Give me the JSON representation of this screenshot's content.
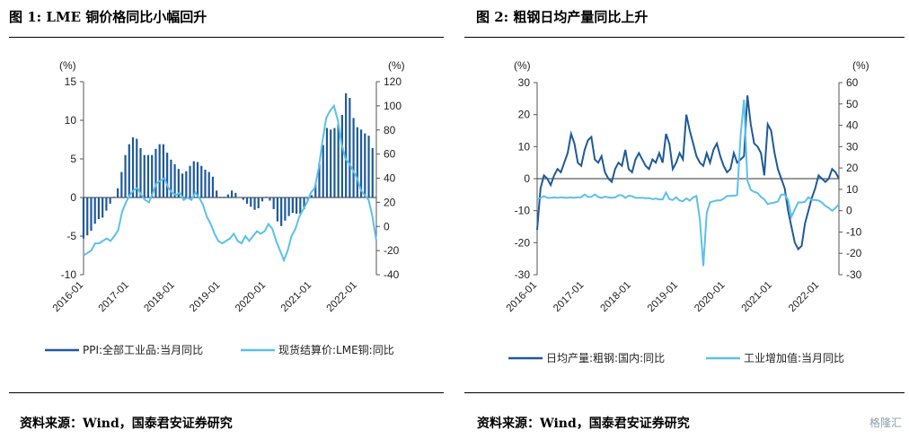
{
  "left": {
    "title": "图 1: LME 铜价格同比小幅回升",
    "source": "资料来源：Wind，国泰君安证券研究",
    "legend": [
      "PPI:全部工业品:当月同比",
      "现货结算价:LME铜:同比"
    ]
  },
  "right": {
    "title": "图 2: 粗钢日均产量同比上升",
    "source": "资料来源：Wind，国泰君安证券研究",
    "legend": [
      "日均产量:粗钢:国内:同比",
      "工业增加值:当月同比"
    ]
  },
  "watermark": "格隆汇",
  "colors": {
    "dark": "#1f5a99",
    "light": "#5bc0eb"
  },
  "chart_data": [
    {
      "type": "bar",
      "title": "图 1: LME 铜价格同比小幅回升",
      "left_unit": "(%)",
      "right_unit": "(%)",
      "ylim": [
        -10,
        15
      ],
      "y2lim": [
        -40,
        120
      ],
      "yticks": [
        -10,
        -5,
        0,
        5,
        10,
        15
      ],
      "y2ticks": [
        -40,
        -20,
        0,
        20,
        40,
        60,
        80,
        100,
        120
      ],
      "x_start": "2016-01",
      "x_end": "2022-06",
      "x_ticks": [
        "2016-01",
        "2017-01",
        "2018-01",
        "2019-01",
        "2020-01",
        "2021-01",
        "2022-01"
      ],
      "series": [
        {
          "name": "PPI:全部工业品:当月同比",
          "axis": "left",
          "kind": "bar",
          "values": [
            -5.3,
            -4.9,
            -4.3,
            -3.4,
            -2.8,
            -2.6,
            -1.7,
            -0.8,
            0.1,
            1.2,
            3.3,
            5.5,
            6.9,
            7.8,
            7.6,
            6.4,
            5.5,
            5.5,
            5.5,
            6.3,
            6.9,
            6.9,
            5.8,
            4.9,
            4.3,
            3.7,
            3.1,
            3.4,
            4.1,
            4.7,
            4.6,
            4.1,
            3.6,
            3.3,
            2.7,
            0.9,
            0.1,
            0.1,
            0.4,
            0.9,
            0.6,
            0.0,
            -0.3,
            -0.8,
            -1.2,
            -1.6,
            -1.4,
            -0.5,
            0.1,
            -0.4,
            -1.5,
            -3.1,
            -3.7,
            -3.0,
            -2.4,
            -2.0,
            -2.1,
            -2.1,
            -1.5,
            -0.4,
            0.3,
            1.7,
            4.4,
            6.8,
            9.0,
            8.8,
            9.0,
            9.5,
            10.7,
            13.5,
            12.9,
            10.3,
            9.1,
            8.8,
            8.3,
            8.0,
            6.4
          ]
        },
        {
          "name": "现货结算价:LME铜:同比",
          "axis": "right",
          "kind": "line",
          "values": [
            -24,
            -22,
            -20,
            -14,
            -14,
            -12,
            -10,
            -12,
            -8,
            -3,
            12,
            20,
            26,
            30,
            32,
            26,
            22,
            20,
            28,
            36,
            38,
            40,
            32,
            28,
            26,
            28,
            22,
            24,
            22,
            28,
            24,
            18,
            8,
            2,
            -6,
            -12,
            -14,
            -12,
            -10,
            -6,
            -12,
            -14,
            -8,
            -12,
            -8,
            -4,
            -6,
            -4,
            2,
            -2,
            -12,
            -20,
            -28,
            -20,
            -8,
            -2,
            8,
            14,
            20,
            28,
            32,
            48,
            70,
            90,
            96,
            100,
            88,
            68,
            56,
            52,
            46,
            40,
            30,
            26,
            22,
            8,
            -12
          ]
        }
      ]
    },
    {
      "type": "line",
      "title": "图 2: 粗钢日均产量同比上升",
      "left_unit": "(%)",
      "right_unit": "(%)",
      "ylim": [
        -30,
        30
      ],
      "y2lim": [
        -30,
        60
      ],
      "yticks": [
        -30,
        -20,
        -10,
        0,
        10,
        20,
        30
      ],
      "y2ticks": [
        -30,
        -20,
        -10,
        0,
        10,
        20,
        30,
        40,
        50,
        60
      ],
      "x_start": "2016-01",
      "x_end": "2022-06",
      "x_ticks": [
        "2016-01",
        "2017-01",
        "2018-01",
        "2019-01",
        "2020-01",
        "2021-01",
        "2022-01"
      ],
      "series": [
        {
          "name": "日均产量:粗钢:国内:同比",
          "axis": "left",
          "kind": "line",
          "values": [
            -16,
            -3,
            1,
            0,
            -2,
            1,
            3,
            2,
            5,
            8,
            14,
            11,
            5,
            4,
            9,
            12,
            13,
            6,
            5,
            7,
            2,
            0,
            -1,
            3,
            5,
            4,
            9,
            3,
            2,
            6,
            8,
            6,
            4,
            3,
            6,
            5,
            8,
            5,
            14,
            11,
            3,
            5,
            8,
            6,
            20,
            15,
            11,
            7,
            5,
            4,
            8,
            5,
            9,
            11,
            7,
            4,
            2,
            3,
            8,
            5,
            6,
            7,
            26,
            17,
            11,
            10,
            8,
            1,
            17,
            15,
            8,
            3,
            0,
            -3,
            -10,
            -15,
            -20,
            -22,
            -21,
            -14,
            -10,
            -6,
            -3,
            1,
            0,
            -1,
            0,
            3,
            2,
            0
          ]
        },
        {
          "name": "工业增加值:当月同比",
          "axis": "right",
          "kind": "line",
          "values": [
            5.5,
            6.0,
            6.8,
            6.0,
            6.0,
            6.2,
            6.0,
            6.3,
            6.1,
            6.1,
            6.2,
            6.0,
            6.3,
            6.3,
            7.6,
            6.5,
            6.5,
            7.6,
            6.4,
            6.0,
            6.6,
            6.2,
            6.1,
            6.2,
            7.2,
            7.2,
            6.0,
            7.0,
            6.8,
            6.0,
            6.0,
            6.1,
            5.8,
            5.9,
            5.4,
            5.7,
            5.3,
            5.3,
            8.5,
            5.4,
            5.0,
            6.3,
            4.8,
            4.4,
            5.8,
            4.7,
            6.2,
            6.9,
            -4.3,
            -25.9,
            -1.1,
            3.9,
            4.4,
            4.8,
            4.8,
            5.6,
            6.9,
            6.9,
            7.0,
            7.3,
            35.1,
            52.0,
            14.1,
            9.8,
            8.8,
            8.3,
            6.4,
            5.3,
            3.1,
            3.5,
            3.8,
            4.3,
            7.5,
            7.5,
            5.0,
            -2.9,
            0.7,
            3.9,
            3.8,
            4.2,
            6.3,
            5.0,
            5.0,
            4.8,
            3.8,
            2.2,
            1.3,
            0.0,
            1.3,
            3.0
          ]
        }
      ]
    }
  ]
}
